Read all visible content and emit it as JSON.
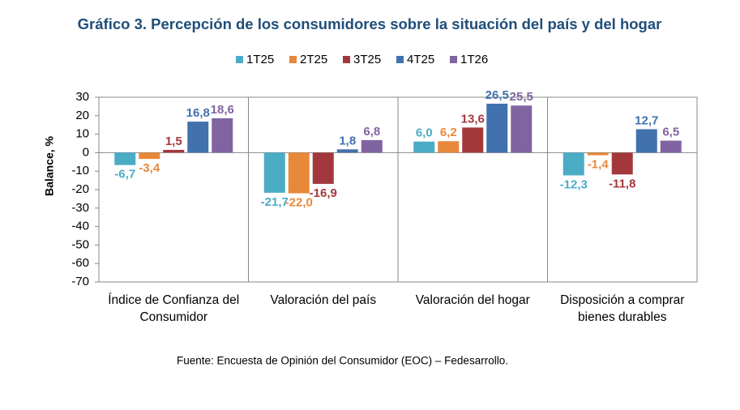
{
  "chart_data": {
    "type": "bar",
    "title": "Gráfico 3. Percepción de los consumidores sobre la situación del país y del hogar",
    "y_label": "Balance, %",
    "source": "Fuente: Encuesta de Opinión del Consumidor (EOC) – Fedesarrollo.",
    "categories": [
      "Índice de Confianza del Consumidor",
      "Valoración del país",
      "Valoración del hogar",
      "Disposición a comprar bienes durables"
    ],
    "series": [
      {
        "name": "1T25",
        "color": "#4bacc6",
        "values": [
          -6.7,
          -21.7,
          6.0,
          -12.3
        ],
        "value_labels": [
          "-6,7",
          "-21,7",
          "6,0",
          "-12,3"
        ]
      },
      {
        "name": "2T25",
        "color": "#e8883a",
        "values": [
          -3.4,
          -22.0,
          6.2,
          -1.4
        ],
        "value_labels": [
          "-3,4",
          "-22,0",
          "6,2",
          "-1,4"
        ]
      },
      {
        "name": "3T25",
        "color": "#a3383c",
        "values": [
          1.5,
          -16.9,
          13.6,
          -11.8
        ],
        "value_labels": [
          "1,5",
          "-16,9",
          "13,6",
          "-11,8"
        ]
      },
      {
        "name": "4T25",
        "color": "#4172ad",
        "values": [
          16.8,
          1.8,
          26.5,
          12.7
        ],
        "value_labels": [
          "16,8",
          "1,8",
          "26,5",
          "12,7"
        ]
      },
      {
        "name": "1T26",
        "color": "#8064a2",
        "values": [
          18.6,
          6.8,
          25.5,
          6.5
        ],
        "value_labels": [
          "18,6",
          "6,8",
          "25,5",
          "6,5"
        ]
      }
    ],
    "ylim": [
      -70,
      30
    ],
    "yticks": [
      -70,
      -60,
      -50,
      -40,
      -30,
      -20,
      -10,
      0,
      10,
      20,
      30
    ]
  }
}
